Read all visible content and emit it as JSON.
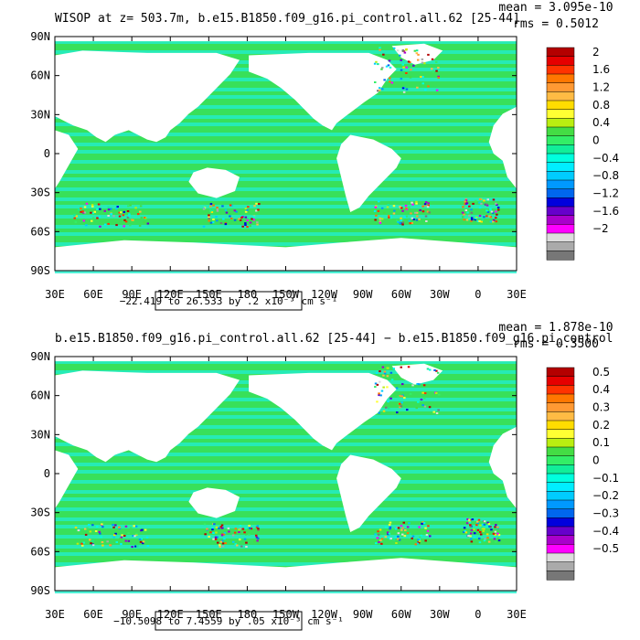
{
  "chart_data": [
    {
      "type": "heatmap",
      "title": "WISOP at z= 503.7m, b.e15.B1850.f09_g16.pi_control.all.62 [25-44]",
      "mean_text": "mean = 3.095e-10",
      "rms_text": "rms = 0.5012",
      "range_text": "−22.419 to 26.533 by .2 x10⁻³ cm s⁻¹",
      "y_ticks": [
        "90N",
        "60N",
        "30N",
        "0",
        "30S",
        "60S",
        "90S"
      ],
      "x_ticks": [
        "30E",
        "60E",
        "90E",
        "120E",
        "150E",
        "180",
        "150W",
        "120W",
        "90W",
        "60W",
        "30W",
        "0",
        "30E"
      ],
      "colorbar_labels": [
        "2",
        "1.6",
        "1.2",
        "0.8",
        "0.4",
        "0",
        "−0.4",
        "−0.8",
        "−1.2",
        "−1.6",
        "−2"
      ],
      "colorbar_levels": [
        2,
        1.6,
        1.2,
        0.8,
        0.4,
        0,
        -0.4,
        -0.8,
        -1.2,
        -1.6,
        -2
      ]
    },
    {
      "type": "heatmap",
      "title": "b.e15.B1850.f09_g16.pi_control.all.62 [25-44] − b.e15.B1850.f09_g16.pi_control",
      "mean_text": "mean = 1.878e-10",
      "rms_text": "rms = 0.3500",
      "range_text": "−10.5098 to 7.4559 by .05 x10⁻³ cm s⁻¹",
      "y_ticks": [
        "90N",
        "60N",
        "30N",
        "0",
        "30S",
        "60S",
        "90S"
      ],
      "x_ticks": [
        "30E",
        "60E",
        "90E",
        "120E",
        "150E",
        "180",
        "150W",
        "120W",
        "90W",
        "60W",
        "30W",
        "0",
        "30E"
      ],
      "colorbar_labels": [
        "0.5",
        "0.4",
        "0.3",
        "0.2",
        "0.1",
        "0",
        "−0.1",
        "−0.2",
        "−0.3",
        "−0.4",
        "−0.5"
      ],
      "colorbar_levels": [
        0.5,
        0.4,
        0.3,
        0.2,
        0.1,
        0,
        -0.1,
        -0.2,
        -0.3,
        -0.4,
        -0.5
      ]
    }
  ],
  "colors": {
    "palette_top_to_bottom": [
      "#b40000",
      "#e60000",
      "#ff3300",
      "#ff7700",
      "#ff9933",
      "#ffbb44",
      "#ffdd00",
      "#ffff33",
      "#bbee11",
      "#44dd44",
      "#33ee66",
      "#11ee99",
      "#00ffdd",
      "#00eeff",
      "#00ccff",
      "#0099ff",
      "#0066ee",
      "#0000dd",
      "#6600cc",
      "#aa00cc",
      "#ff00ff",
      "#dddddd",
      "#aaaaaa",
      "#777777"
    ],
    "ocean_main": "#38e05a",
    "ocean_alt": "#22eecc",
    "land": "#ffffff"
  }
}
